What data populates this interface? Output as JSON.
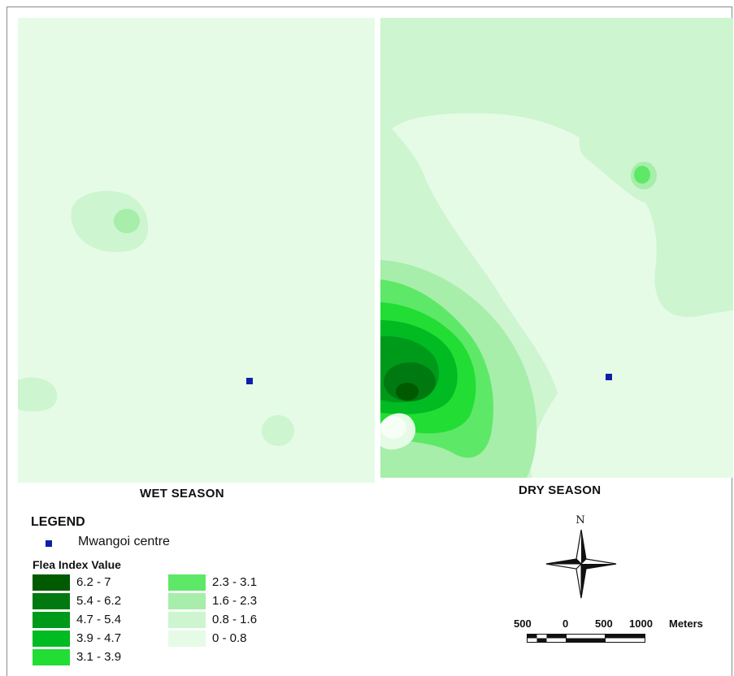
{
  "maps": {
    "wet": {
      "label": "WET SEASON"
    },
    "dry": {
      "label": "DRY SEASON"
    }
  },
  "legend": {
    "title": "LEGEND",
    "centre": {
      "label": "Mwangoi centre",
      "color": "#0d1fa8"
    },
    "flea_title": "Flea Index Value",
    "classes": [
      {
        "range": "6.2 - 7",
        "color": "#005a00"
      },
      {
        "range": "5.4 - 6.2",
        "color": "#007a10"
      },
      {
        "range": "4.7 - 5.4",
        "color": "#009a1a"
      },
      {
        "range": "3.9 - 4.7",
        "color": "#00bb22"
      },
      {
        "range": "3.1 - 3.9",
        "color": "#22dd33"
      },
      {
        "range": "2.3 - 3.1",
        "color": "#5ee868"
      },
      {
        "range": "1.6 - 2.3",
        "color": "#a6eeaa"
      },
      {
        "range": "0.8 - 1.6",
        "color": "#cdf5cf"
      },
      {
        "range": "0 - 0.8",
        "color": "#e5fbe6"
      }
    ]
  },
  "north_arrow": {
    "label": "N"
  },
  "scale_bar": {
    "ticks": [
      "500",
      "0",
      "500",
      "1000"
    ],
    "unit": "Meters"
  }
}
